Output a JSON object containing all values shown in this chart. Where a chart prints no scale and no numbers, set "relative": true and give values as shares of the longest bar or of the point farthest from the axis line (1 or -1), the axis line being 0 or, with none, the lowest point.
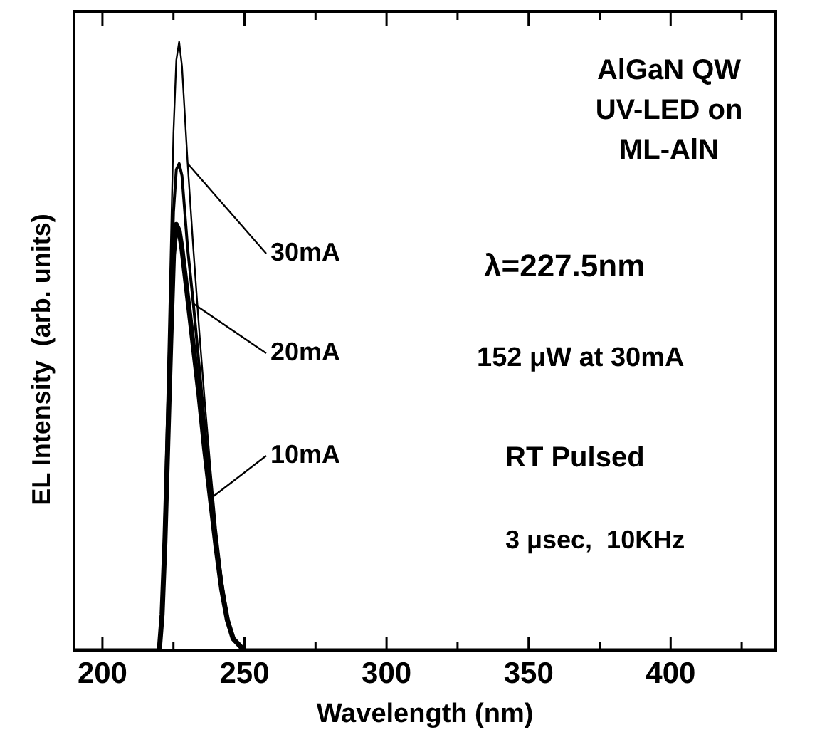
{
  "chart_data": {
    "type": "line",
    "xlabel": "Wavelength (nm)",
    "ylabel": "EL Intensity  (arb. units)",
    "relative": true,
    "xlim": [
      190,
      437
    ],
    "xticks": [
      200,
      {
        "value": 225,
        "label": null
      },
      250,
      {
        "value": 275,
        "label": null
      },
      300,
      {
        "value": 325,
        "label": null
      },
      350,
      {
        "value": 375,
        "label": null
      },
      400,
      {
        "value": 425,
        "label": null
      }
    ],
    "x": [
      190,
      220,
      221,
      222,
      223,
      224,
      225,
      226,
      227,
      228,
      229,
      230,
      232,
      234,
      236,
      238,
      240,
      242,
      244,
      246,
      248,
      250,
      437
    ],
    "series": [
      {
        "name": "30mA",
        "color": "#000000",
        "values": [
          0,
          0,
          0.08,
          0.25,
          0.45,
          0.65,
          0.85,
          0.97,
          1,
          0.96,
          0.88,
          0.8,
          0.66,
          0.53,
          0.41,
          0.3,
          0.2,
          0.12,
          0.06,
          0.02,
          0.01,
          0,
          0
        ]
      },
      {
        "name": "20mA",
        "color": "#000000",
        "values": [
          0,
          0,
          0.07,
          0.2,
          0.38,
          0.55,
          0.72,
          0.79,
          0.8,
          0.78,
          0.72,
          0.66,
          0.57,
          0.47,
          0.37,
          0.27,
          0.18,
          0.11,
          0.05,
          0.02,
          0.01,
          0,
          0
        ]
      },
      {
        "name": "10mA",
        "color": "#000000",
        "values": [
          0,
          0,
          0.06,
          0.18,
          0.34,
          0.5,
          0.65,
          0.7,
          0.69,
          0.66,
          0.62,
          0.58,
          0.5,
          0.42,
          0.33,
          0.25,
          0.17,
          0.1,
          0.05,
          0.02,
          0.01,
          0,
          0
        ]
      }
    ],
    "annotations": [
      "AlGaN QW",
      "UV-LED on",
      "ML-AlN",
      "λ=227.5nm",
      "152 μW at 30mA",
      "RT Pulsed",
      "3 μsec,  10KHz"
    ],
    "grid": false,
    "legend": false,
    "marker": "none",
    "line_style": "solid"
  }
}
